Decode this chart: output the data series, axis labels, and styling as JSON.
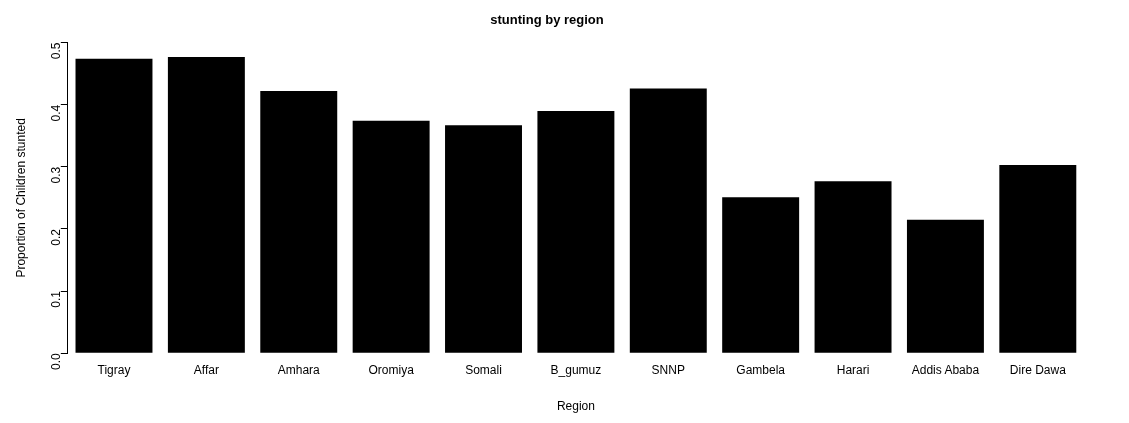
{
  "chart_data": {
    "type": "bar",
    "title": "stunting by region",
    "xlabel": "Region",
    "ylabel": "Proportion of Children stunted",
    "categories": [
      "Tigray",
      "Affar",
      "Amhara",
      "Oromiya",
      "Somali",
      "B_gumuz",
      "SNNP",
      "Gambela",
      "Harari",
      "Addis Ababa",
      "Dire Dawa"
    ],
    "values": [
      0.474,
      0.477,
      0.422,
      0.374,
      0.367,
      0.39,
      0.426,
      0.251,
      0.277,
      0.215,
      0.303
    ],
    "color": "#000000",
    "ylim": [
      0,
      0.5
    ],
    "yticks": [
      {
        "value": 0,
        "label": "0.0"
      },
      {
        "value": 0.1,
        "label": "0.1"
      },
      {
        "value": 0.2,
        "label": "0.2"
      },
      {
        "value": 0.3,
        "label": "0.3"
      },
      {
        "value": 0.4,
        "label": "0.4"
      },
      {
        "value": 0.5,
        "label": "0.5"
      }
    ],
    "grid": false,
    "legend": false
  }
}
